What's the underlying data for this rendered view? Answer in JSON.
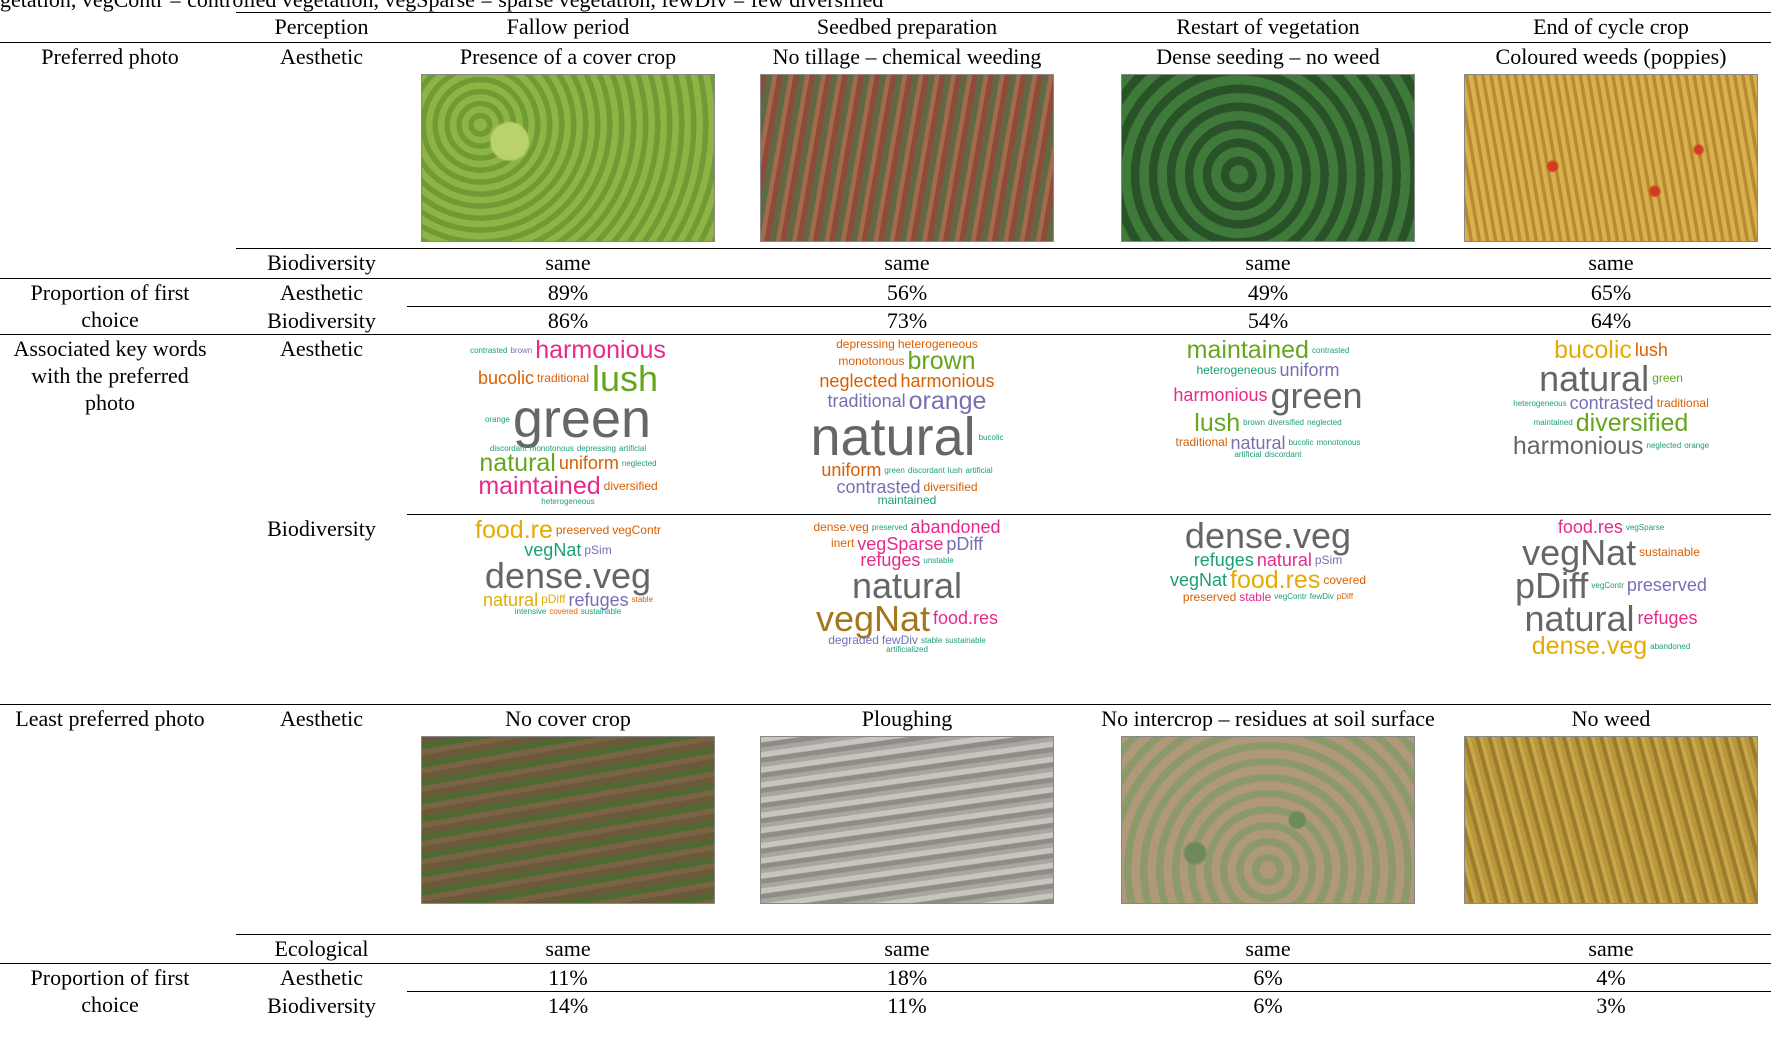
{
  "caption": "getation, vegContr = controlled vegetation, vegSparse = sparse vegetation, fewDiv = few diversified",
  "header": [
    "Perception",
    "Fallow period",
    "Seedbed preparation",
    "Restart of vegetation",
    "End of cycle crop"
  ],
  "preferred": {
    "label": "Preferred photo",
    "perception": "Aesthetic",
    "photos": [
      "Presence of a cover crop",
      "No tillage – chemical weeding",
      "Dense seeding – no weed",
      "Coloured weeds (poppies)"
    ],
    "ecological_label": "Biodiversity",
    "ecological": [
      "same",
      "same",
      "same",
      "same"
    ]
  },
  "proportion_preferred": {
    "label": "Proportion of first choice",
    "rows": [
      {
        "perception": "Aesthetic",
        "values": [
          "89%",
          "56%",
          "49%",
          "65%"
        ]
      },
      {
        "perception": "Biodiversity",
        "values": [
          "86%",
          "73%",
          "54%",
          "64%"
        ]
      }
    ]
  },
  "keywords": {
    "label": "Associated key words with the preferred photo",
    "rows": [
      {
        "perception": "Aesthetic",
        "clouds": [
          [
            {
              "text": "contrasted",
              "color": "#1b9e77"
            },
            {
              "text": "brown",
              "color": "#7570b3"
            },
            {
              "text": "harmonious",
              "color": "#e7298a"
            },
            {
              "text": "bucolic",
              "color": "#d95f02"
            },
            {
              "text": "traditional",
              "color": "#d95f02"
            },
            {
              "text": "lush",
              "color": "#66a61e"
            },
            {
              "text": "orange",
              "color": "#1b9e77"
            },
            {
              "text": "green",
              "color": "#666666"
            },
            {
              "text": "discordant",
              "color": "#1b9e77"
            },
            {
              "text": "monotonous",
              "color": "#1b9e77"
            },
            {
              "text": "depressing",
              "color": "#1b9e77"
            },
            {
              "text": "artificial",
              "color": "#1b9e77"
            },
            {
              "text": "natural",
              "color": "#66a61e"
            },
            {
              "text": "uniform",
              "color": "#d95f02"
            },
            {
              "text": "neglected",
              "color": "#1b9e77"
            },
            {
              "text": "maintained",
              "color": "#e7298a"
            },
            {
              "text": "diversified",
              "color": "#d95f02"
            },
            {
              "text": "heterogeneous",
              "color": "#1b9e77"
            }
          ],
          [
            {
              "text": "depressing",
              "color": "#d95f02"
            },
            {
              "text": "heterogeneous",
              "color": "#d95f02"
            },
            {
              "text": "monotonous",
              "color": "#d95f02"
            },
            {
              "text": "brown",
              "color": "#66a61e"
            },
            {
              "text": "neglected",
              "color": "#d95f02"
            },
            {
              "text": "harmonious",
              "color": "#d95f02"
            },
            {
              "text": "traditional",
              "color": "#7570b3"
            },
            {
              "text": "orange",
              "color": "#7570b3"
            },
            {
              "text": "natural",
              "color": "#666666"
            },
            {
              "text": "bucolic",
              "color": "#1b9e77"
            },
            {
              "text": "uniform",
              "color": "#d95f02"
            },
            {
              "text": "green",
              "color": "#1b9e77"
            },
            {
              "text": "discordant",
              "color": "#1b9e77"
            },
            {
              "text": "lush",
              "color": "#1b9e77"
            },
            {
              "text": "artificial",
              "color": "#1b9e77"
            },
            {
              "text": "contrasted",
              "color": "#7570b3"
            },
            {
              "text": "diversified",
              "color": "#d95f02"
            },
            {
              "text": "maintained",
              "color": "#1b9e77"
            }
          ],
          [
            {
              "text": "maintained",
              "color": "#66a61e"
            },
            {
              "text": "contrasted",
              "color": "#1b9e77"
            },
            {
              "text": "heterogeneous",
              "color": "#1b9e77"
            },
            {
              "text": "uniform",
              "color": "#7570b3"
            },
            {
              "text": "harmonious",
              "color": "#e7298a"
            },
            {
              "text": "green",
              "color": "#666666"
            },
            {
              "text": "lush",
              "color": "#66a61e"
            },
            {
              "text": "brown",
              "color": "#1b9e77"
            },
            {
              "text": "diversified",
              "color": "#1b9e77"
            },
            {
              "text": "neglected",
              "color": "#1b9e77"
            },
            {
              "text": "traditional",
              "color": "#d95f02"
            },
            {
              "text": "natural",
              "color": "#7570b3"
            },
            {
              "text": "bucolic",
              "color": "#1b9e77"
            },
            {
              "text": "monotonous",
              "color": "#1b9e77"
            },
            {
              "text": "artificial",
              "color": "#1b9e77"
            },
            {
              "text": "discordant",
              "color": "#1b9e77"
            }
          ],
          [
            {
              "text": "bucolic",
              "color": "#e6ab02"
            },
            {
              "text": "lush",
              "color": "#d95f02"
            },
            {
              "text": "natural",
              "color": "#666666"
            },
            {
              "text": "green",
              "color": "#66a61e"
            },
            {
              "text": "heterogeneous",
              "color": "#1b9e77"
            },
            {
              "text": "contrasted",
              "color": "#7570b3"
            },
            {
              "text": "traditional",
              "color": "#d95f02"
            },
            {
              "text": "maintained",
              "color": "#1b9e77"
            },
            {
              "text": "diversified",
              "color": "#66a61e"
            },
            {
              "text": "harmonious",
              "color": "#666666"
            },
            {
              "text": "neglected",
              "color": "#1b9e77"
            },
            {
              "text": "orange",
              "color": "#1b9e77"
            }
          ]
        ]
      },
      {
        "perception": "Biodiversity",
        "clouds": [
          [
            {
              "text": "food.re",
              "color": "#e6ab02"
            },
            {
              "text": "preserved",
              "color": "#d95f02"
            },
            {
              "text": "vegContr",
              "color": "#d95f02"
            },
            {
              "text": "vegNat",
              "color": "#1b9e77"
            },
            {
              "text": "pSim",
              "color": "#7570b3"
            },
            {
              "text": "dense.veg",
              "color": "#666666"
            },
            {
              "text": "natural",
              "color": "#e6ab02"
            },
            {
              "text": "pDiff",
              "color": "#e6ab02"
            },
            {
              "text": "refuges",
              "color": "#7570b3"
            },
            {
              "text": "stable",
              "color": "#d95f02"
            },
            {
              "text": "intensive",
              "color": "#1b9e77"
            },
            {
              "text": "covered",
              "color": "#d95f02"
            },
            {
              "text": "sustainable",
              "color": "#1b9e77"
            }
          ],
          [
            {
              "text": "dense.veg",
              "color": "#d95f02"
            },
            {
              "text": "preserved",
              "color": "#1b9e77"
            },
            {
              "text": "abandoned",
              "color": "#e7298a"
            },
            {
              "text": "inert",
              "color": "#d95f02"
            },
            {
              "text": "vegSparse",
              "color": "#e7298a"
            },
            {
              "text": "pDiff",
              "color": "#7570b3"
            },
            {
              "text": "refuges",
              "color": "#e7298a"
            },
            {
              "text": "unstable",
              "color": "#1b9e77"
            },
            {
              "text": "natural",
              "color": "#666666"
            },
            {
              "text": "vegNat",
              "color": "#a6761d"
            },
            {
              "text": "food.res",
              "color": "#e7298a"
            },
            {
              "text": "degraded",
              "color": "#7570b3"
            },
            {
              "text": "fewDiv",
              "color": "#7570b3"
            },
            {
              "text": "stable",
              "color": "#1b9e77"
            },
            {
              "text": "sustainable",
              "color": "#1b9e77"
            },
            {
              "text": "artificialized",
              "color": "#1b9e77"
            }
          ],
          [
            {
              "text": "dense.veg",
              "color": "#666666"
            },
            {
              "text": "refuges",
              "color": "#1b9e77"
            },
            {
              "text": "natural",
              "color": "#e7298a"
            },
            {
              "text": "pSim",
              "color": "#7570b3"
            },
            {
              "text": "vegNat",
              "color": "#1b9e77"
            },
            {
              "text": "food.res",
              "color": "#e6ab02"
            },
            {
              "text": "covered",
              "color": "#d95f02"
            },
            {
              "text": "preserved",
              "color": "#d95f02"
            },
            {
              "text": "stable",
              "color": "#e7298a"
            },
            {
              "text": "vegContr",
              "color": "#1b9e77"
            },
            {
              "text": "fewDiv",
              "color": "#1b9e77"
            },
            {
              "text": "pDiff",
              "color": "#d95f02"
            }
          ],
          [
            {
              "text": "food.res",
              "color": "#e7298a"
            },
            {
              "text": "vegSparse",
              "color": "#1b9e77"
            },
            {
              "text": "vegNat",
              "color": "#666666"
            },
            {
              "text": "sustainable",
              "color": "#d95f02"
            },
            {
              "text": "pDiff",
              "color": "#666666"
            },
            {
              "text": "vegContr",
              "color": "#1b9e77"
            },
            {
              "text": "preserved",
              "color": "#7570b3"
            },
            {
              "text": "natural",
              "color": "#666666"
            },
            {
              "text": "refuges",
              "color": "#e7298a"
            },
            {
              "text": "dense.veg",
              "color": "#e6ab02"
            },
            {
              "text": "abandoned",
              "color": "#1b9e77"
            }
          ]
        ]
      }
    ]
  },
  "least": {
    "label": "Least preferred photo",
    "perception": "Aesthetic",
    "photos": [
      "No cover crop",
      "Ploughing",
      "No intercrop – residues at soil surface",
      "No weed"
    ],
    "ecological_label": "Ecological",
    "ecological": [
      "same",
      "same",
      "same",
      "same"
    ]
  },
  "proportion_least": {
    "label": "Proportion of first choice",
    "rows": [
      {
        "perception": "Aesthetic",
        "values": [
          "11%",
          "18%",
          "6%",
          "4%"
        ]
      },
      {
        "perception": "Biodiversity",
        "values": [
          "14%",
          "11%",
          "6%",
          "3%"
        ]
      }
    ]
  }
}
